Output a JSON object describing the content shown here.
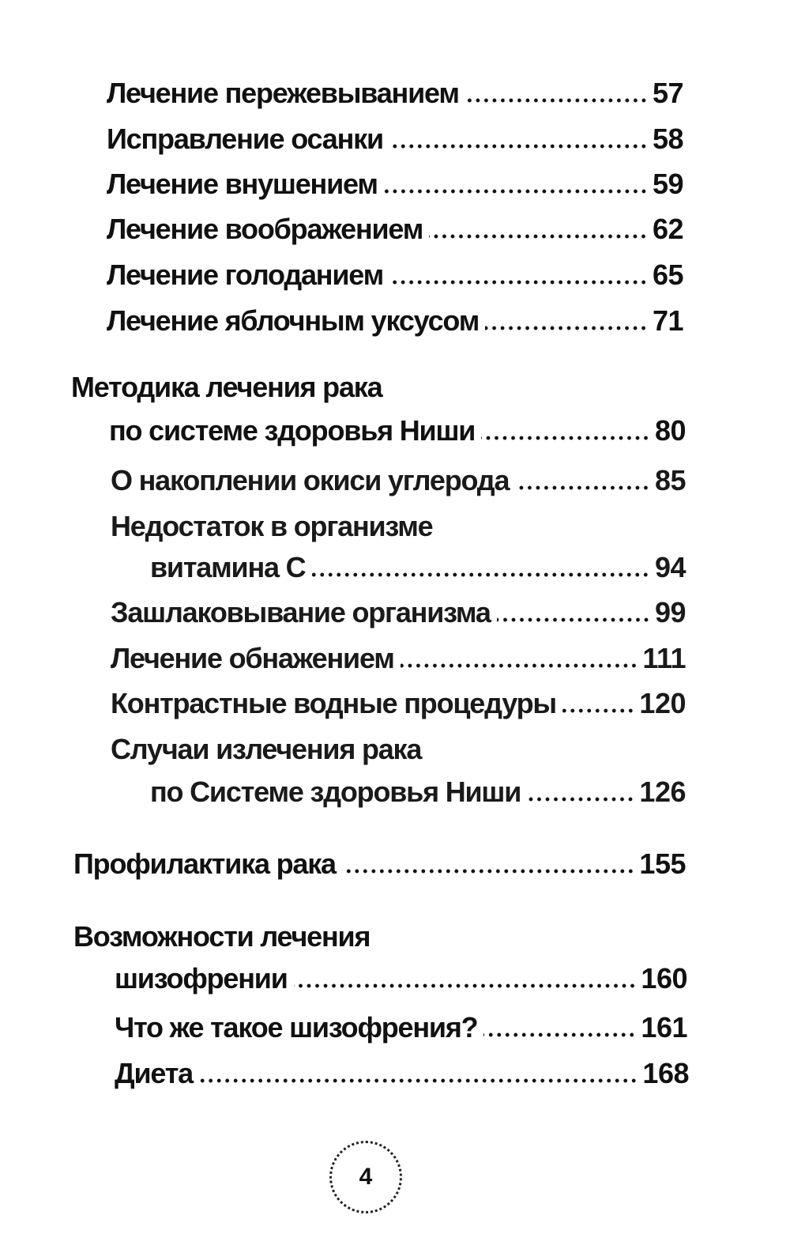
{
  "toc": [
    {
      "title": "Лечение пережевыванием",
      "page": "57"
    },
    {
      "title": "Исправление осанки",
      "page": "58"
    },
    {
      "title": "Лечение внушением",
      "page": "59"
    },
    {
      "title": "Лечение воображением",
      "page": "62"
    },
    {
      "title": "Лечение голоданием",
      "page": "65"
    },
    {
      "title": "Лечение яблочным уксусом",
      "page": "71"
    },
    {
      "title_line1": "Методика лечения рака",
      "title_line2": "по системе здоровья Ниши",
      "page": "80"
    },
    {
      "title": "О накоплении окиси углерода",
      "page": "85"
    },
    {
      "title_line1": "Недостаток в организме",
      "title_line2": "витамина С",
      "page": "94"
    },
    {
      "title": "Зашлаковывание организма",
      "page": "99"
    },
    {
      "title": "Лечение обнажением",
      "page": "111"
    },
    {
      "title": "Контрастные водные процедуры",
      "page": "120"
    },
    {
      "title_line1": "Случаи излечения рака",
      "title_line2": "по Системе здоровья Ниши",
      "page": "126"
    },
    {
      "title": "Профилактика рака",
      "page": "155"
    },
    {
      "title_line1": "Возможности лечения",
      "title_line2": "шизофрении",
      "page": "160"
    },
    {
      "title": "Что же такое шизофрения?",
      "page": "161"
    },
    {
      "title": "Диета",
      "page": "168"
    }
  ],
  "page_number": "4"
}
